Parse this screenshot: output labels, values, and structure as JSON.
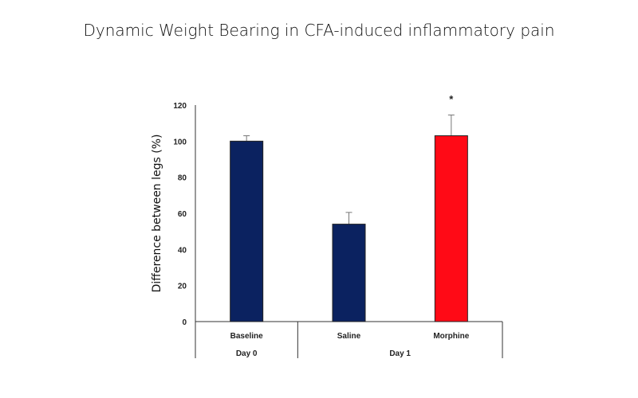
{
  "chart_data": {
    "type": "bar",
    "title": "Dynamic Weight Bearing in CFA-induced inflammatory pain",
    "xlabel": "",
    "ylabel": "Difference between legs (%)",
    "ylim": [
      0,
      120
    ],
    "yticks": [
      0,
      20,
      40,
      60,
      80,
      100,
      120
    ],
    "grid": false,
    "categories": [
      "Baseline",
      "Saline",
      "Morphine"
    ],
    "groups": [
      {
        "label": "Day 0",
        "categories": [
          "Baseline"
        ]
      },
      {
        "label": "Day 1",
        "categories": [
          "Saline",
          "Morphine"
        ]
      }
    ],
    "values": [
      100,
      54,
      103
    ],
    "error_upper": [
      3,
      6.5,
      11.5
    ],
    "colors": [
      "#0b2260",
      "#0b2260",
      "#ff0a16"
    ],
    "annotations": [
      {
        "category": "Morphine",
        "text": "*"
      }
    ]
  }
}
